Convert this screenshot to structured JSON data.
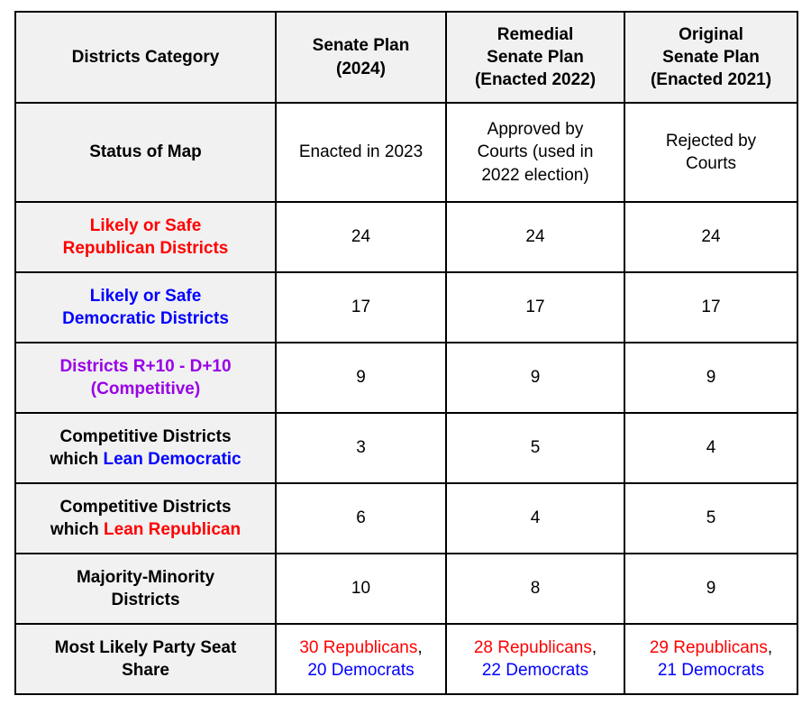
{
  "palette": {
    "black": "#000000",
    "red": "#ff0000",
    "blue": "#0000ff",
    "purple": "#9900e6",
    "header_bg": "#f1f1f1",
    "border": "#000000"
  },
  "table": {
    "name": "senate-redistricting-plans-comparison",
    "columns": [
      {
        "key": "districts-category",
        "lines": [
          "Districts Category"
        ]
      },
      {
        "key": "senate-plan-2024",
        "lines": [
          "Senate Plan",
          "(2024)"
        ]
      },
      {
        "key": "remedial-senate-plan",
        "lines": [
          "Remedial",
          "Senate Plan",
          "(Enacted 2022)"
        ]
      },
      {
        "key": "original-senate-plan",
        "lines": [
          "Original",
          "Senate Plan",
          "(Enacted 2021)"
        ]
      }
    ],
    "rows": [
      {
        "key": "status-of-map",
        "type": "status",
        "category_lines": [
          [
            {
              "t": "Status of Map",
              "c": "black"
            }
          ]
        ],
        "cells": [
          [
            [
              {
                "t": "Enacted in 2023",
                "c": "black"
              }
            ]
          ],
          [
            [
              {
                "t": "Approved by",
                "c": "black"
              }
            ],
            [
              {
                "t": "Courts (used in",
                "c": "black"
              }
            ],
            [
              {
                "t": "2022 election)",
                "c": "black"
              }
            ]
          ],
          [
            [
              {
                "t": "Rejected by",
                "c": "black"
              }
            ],
            [
              {
                "t": "Courts",
                "c": "black"
              }
            ]
          ]
        ]
      },
      {
        "key": "likely-safe-republican-districts",
        "type": "data",
        "category_lines": [
          [
            {
              "t": "Likely or Safe",
              "c": "red"
            }
          ],
          [
            {
              "t": "Republican Districts",
              "c": "red"
            }
          ]
        ],
        "cells": [
          [
            [
              {
                "t": "24",
                "c": "black"
              }
            ]
          ],
          [
            [
              {
                "t": "24",
                "c": "black"
              }
            ]
          ],
          [
            [
              {
                "t": "24",
                "c": "black"
              }
            ]
          ]
        ]
      },
      {
        "key": "likely-safe-democratic-districts",
        "type": "data",
        "category_lines": [
          [
            {
              "t": "Likely or Safe",
              "c": "blue"
            }
          ],
          [
            {
              "t": "Democratic Districts",
              "c": "blue"
            }
          ]
        ],
        "cells": [
          [
            [
              {
                "t": "17",
                "c": "black"
              }
            ]
          ],
          [
            [
              {
                "t": "17",
                "c": "black"
              }
            ]
          ],
          [
            [
              {
                "t": "17",
                "c": "black"
              }
            ]
          ]
        ]
      },
      {
        "key": "competitive-districts-r10-d10",
        "type": "data",
        "category_lines": [
          [
            {
              "t": "Districts R+10 - D+10",
              "c": "purple"
            }
          ],
          [
            {
              "t": "(Competitive)",
              "c": "purple"
            }
          ]
        ],
        "cells": [
          [
            [
              {
                "t": "9",
                "c": "black"
              }
            ]
          ],
          [
            [
              {
                "t": "9",
                "c": "black"
              }
            ]
          ],
          [
            [
              {
                "t": "9",
                "c": "black"
              }
            ]
          ]
        ]
      },
      {
        "key": "competitive-lean-democratic",
        "type": "data",
        "category_lines": [
          [
            {
              "t": "Competitive Districts",
              "c": "black"
            }
          ],
          [
            {
              "t": "which ",
              "c": "black"
            },
            {
              "t": "Lean Democratic",
              "c": "blue"
            }
          ]
        ],
        "cells": [
          [
            [
              {
                "t": "3",
                "c": "black"
              }
            ]
          ],
          [
            [
              {
                "t": "5",
                "c": "black"
              }
            ]
          ],
          [
            [
              {
                "t": "4",
                "c": "black"
              }
            ]
          ]
        ]
      },
      {
        "key": "competitive-lean-republican",
        "type": "data",
        "category_lines": [
          [
            {
              "t": "Competitive Districts",
              "c": "black"
            }
          ],
          [
            {
              "t": "which ",
              "c": "black"
            },
            {
              "t": "Lean Republican",
              "c": "red"
            }
          ]
        ],
        "cells": [
          [
            [
              {
                "t": "6",
                "c": "black"
              }
            ]
          ],
          [
            [
              {
                "t": "4",
                "c": "black"
              }
            ]
          ],
          [
            [
              {
                "t": "5",
                "c": "black"
              }
            ]
          ]
        ]
      },
      {
        "key": "majority-minority-districts",
        "type": "data",
        "category_lines": [
          [
            {
              "t": "Majority-Minority",
              "c": "black"
            }
          ],
          [
            {
              "t": "Districts",
              "c": "black"
            }
          ]
        ],
        "cells": [
          [
            [
              {
                "t": "10",
                "c": "black"
              }
            ]
          ],
          [
            [
              {
                "t": "8",
                "c": "black"
              }
            ]
          ],
          [
            [
              {
                "t": "9",
                "c": "black"
              }
            ]
          ]
        ]
      },
      {
        "key": "most-likely-party-seat-share",
        "type": "data",
        "category_lines": [
          [
            {
              "t": "Most Likely Party Seat",
              "c": "black"
            }
          ],
          [
            {
              "t": "Share",
              "c": "black"
            }
          ]
        ],
        "cells": [
          [
            [
              {
                "t": "30 Republicans",
                "c": "red"
              },
              {
                "t": ",",
                "c": "black"
              }
            ],
            [
              {
                "t": "20 Democrats",
                "c": "blue"
              }
            ]
          ],
          [
            [
              {
                "t": "28 Republicans",
                "c": "red"
              },
              {
                "t": ",",
                "c": "black"
              }
            ],
            [
              {
                "t": "22 Democrats",
                "c": "blue"
              }
            ]
          ],
          [
            [
              {
                "t": "29 Republicans",
                "c": "red"
              },
              {
                "t": ",",
                "c": "black"
              }
            ],
            [
              {
                "t": "21 Democrats",
                "c": "blue"
              }
            ]
          ]
        ]
      }
    ]
  }
}
